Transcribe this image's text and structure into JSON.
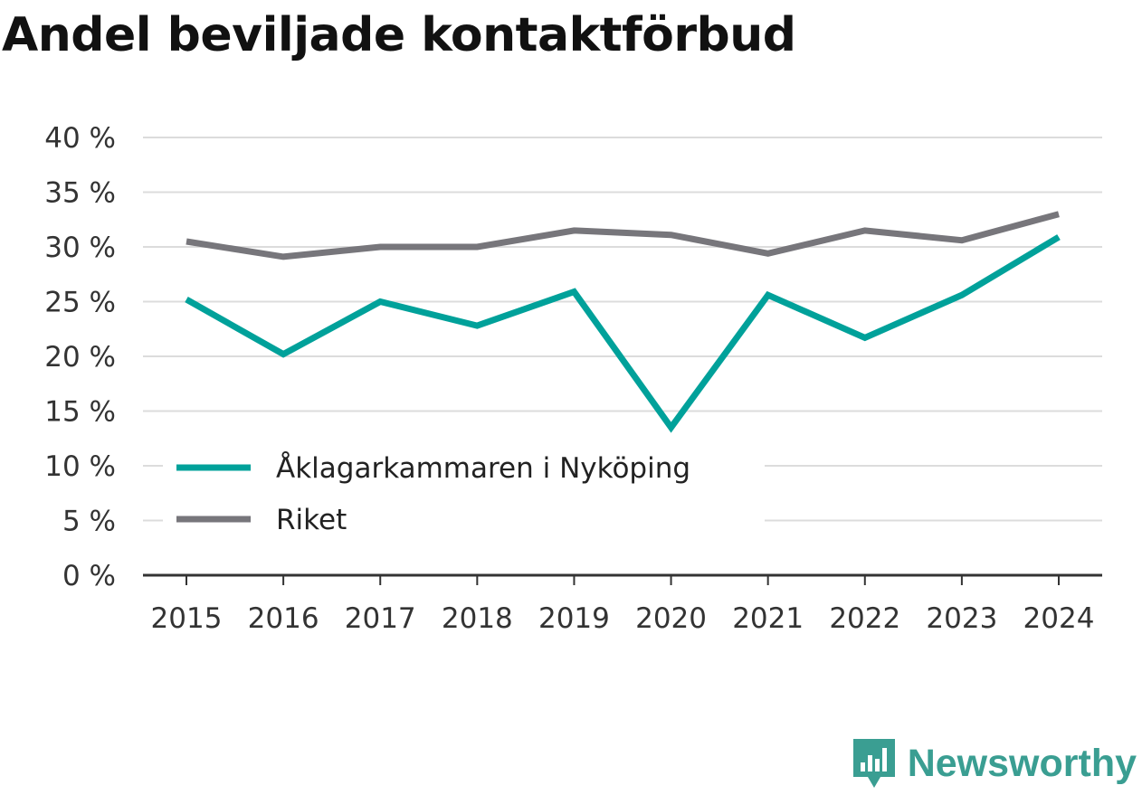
{
  "title": "Andel beviljade kontaktförbud",
  "chart_data": {
    "type": "line",
    "x": [
      "2015",
      "2016",
      "2017",
      "2018",
      "2019",
      "2020",
      "2021",
      "2022",
      "2023",
      "2024"
    ],
    "series": [
      {
        "name": "Åklagarkammaren i Nyköping",
        "color": "#00a19a",
        "values": [
          25.2,
          20.2,
          25.0,
          22.8,
          25.9,
          13.5,
          25.6,
          21.7,
          25.6,
          30.9
        ]
      },
      {
        "name": "Riket",
        "color": "#77767b",
        "values": [
          30.5,
          29.1,
          30.0,
          30.0,
          31.5,
          31.1,
          29.4,
          31.5,
          30.6,
          33.0
        ]
      }
    ],
    "ylim": [
      0,
      40
    ],
    "yticks": [
      0,
      5,
      10,
      15,
      20,
      25,
      30,
      35,
      40
    ],
    "ytick_labels": [
      "0 %",
      "5 %",
      "10 %",
      "15 %",
      "20 %",
      "25 %",
      "30 %",
      "35 %",
      "40 %"
    ],
    "grid": true,
    "legend": "lower-left"
  },
  "brand": {
    "name": "Newsworthy",
    "color": "#3a9e92"
  }
}
